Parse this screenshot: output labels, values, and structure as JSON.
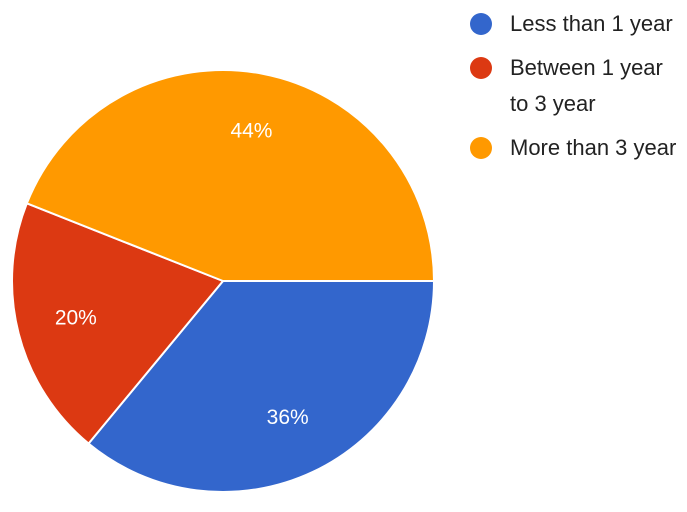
{
  "chart_data": {
    "type": "pie",
    "start_angle_deg": 0,
    "direction": "clockwise",
    "legend_position": "right",
    "slices": [
      {
        "label": "Less than 1 year",
        "value": 36,
        "value_label": "36%",
        "color": "#3366cc"
      },
      {
        "label": "Between 1 year to 3 year",
        "value": 20,
        "value_label": "20%",
        "color": "#dc3912"
      },
      {
        "label": "More than 3 year",
        "value": 44,
        "value_label": "44%",
        "color": "#ff9900"
      }
    ]
  }
}
